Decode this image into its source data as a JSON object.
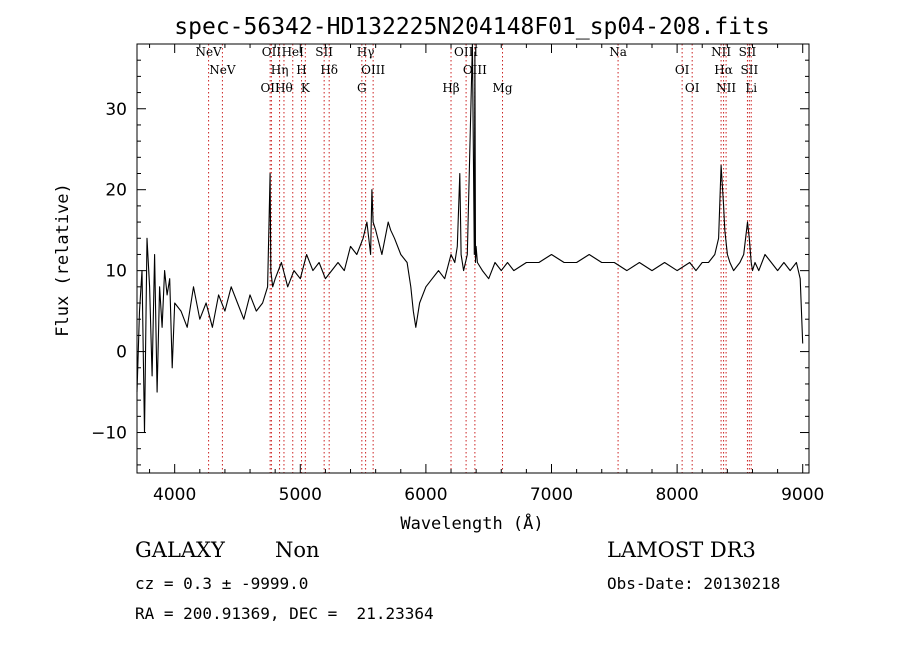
{
  "chart_data": {
    "type": "line",
    "title": "spec-56342-HD132225N204148F01_sp04-208.fits",
    "xlabel": "Wavelength (Å)",
    "ylabel": "Flux (relative)",
    "xlim": [
      3700,
      9050
    ],
    "ylim": [
      -15,
      38
    ],
    "xticks": [
      4000,
      5000,
      6000,
      7000,
      8000,
      9000
    ],
    "yticks": [
      -10,
      0,
      10,
      20,
      30
    ],
    "grid": false,
    "series": [
      {
        "color": "#000000",
        "x": [
          3700,
          3720,
          3740,
          3760,
          3780,
          3800,
          3820,
          3840,
          3860,
          3880,
          3900,
          3920,
          3940,
          3960,
          3980,
          4000,
          4050,
          4100,
          4150,
          4200,
          4250,
          4300,
          4350,
          4400,
          4450,
          4500,
          4550,
          4600,
          4650,
          4700,
          4740,
          4760,
          4765,
          4780,
          4800,
          4850,
          4900,
          4950,
          5000,
          5050,
          5100,
          5150,
          5200,
          5250,
          5300,
          5350,
          5400,
          5450,
          5500,
          5530,
          5560,
          5570,
          5580,
          5600,
          5650,
          5700,
          5720,
          5750,
          5800,
          5850,
          5880,
          5900,
          5920,
          5950,
          6000,
          6050,
          6100,
          6150,
          6200,
          6230,
          6250,
          6270,
          6280,
          6300,
          6330,
          6370,
          6385,
          6390,
          6395,
          6400,
          6410,
          6450,
          6500,
          6550,
          6600,
          6650,
          6700,
          6800,
          6900,
          7000,
          7100,
          7200,
          7300,
          7400,
          7500,
          7600,
          7700,
          7800,
          7900,
          8000,
          8100,
          8150,
          8200,
          8250,
          8300,
          8330,
          8350,
          8370,
          8380,
          8400,
          8420,
          8450,
          8500,
          8530,
          8560,
          8575,
          8590,
          8600,
          8620,
          8650,
          8700,
          8750,
          8800,
          8850,
          8900,
          8950,
          8980,
          9000
        ],
        "values": [
          -5,
          5,
          10,
          -10,
          14,
          8,
          -3,
          12,
          -5,
          8,
          3,
          10,
          7,
          9,
          -2,
          6,
          5,
          3,
          8,
          4,
          6,
          3,
          7,
          5,
          8,
          6,
          4,
          7,
          5,
          6,
          8,
          22,
          10,
          8,
          9,
          11,
          8,
          10,
          9,
          12,
          10,
          11,
          9,
          10,
          11,
          10,
          13,
          12,
          14,
          16,
          12,
          20,
          16,
          15,
          12,
          16,
          15,
          14,
          12,
          11,
          8,
          5,
          3,
          6,
          8,
          9,
          10,
          9,
          12,
          11,
          13,
          22,
          12,
          10,
          12,
          38,
          12,
          37,
          11,
          13,
          11,
          10,
          9,
          11,
          10,
          11,
          10,
          11,
          11,
          12,
          11,
          11,
          12,
          11,
          11,
          10,
          11,
          10,
          11,
          10,
          11,
          10,
          11,
          11,
          12,
          14,
          23,
          18,
          15,
          12,
          11,
          10,
          11,
          12,
          16,
          14,
          11,
          10,
          11,
          10,
          12,
          11,
          10,
          11,
          10,
          11,
          9,
          1
        ]
      }
    ],
    "line_markers": [
      {
        "x": 4270,
        "label": "NeV"
      },
      {
        "x": 4380,
        "label": "NeV"
      },
      {
        "x": 4760,
        "label": "OII"
      },
      {
        "x": 4770,
        "label": "OII"
      },
      {
        "x": 4835,
        "label": "Hη"
      },
      {
        "x": 4870,
        "label": "Hθ"
      },
      {
        "x": 4940,
        "label": "HeI"
      },
      {
        "x": 5010,
        "label": "H"
      },
      {
        "x": 5040,
        "label": "K"
      },
      {
        "x": 5190,
        "label": "SII"
      },
      {
        "x": 5230,
        "label": "Hδ"
      },
      {
        "x": 5490,
        "label": "G"
      },
      {
        "x": 5520,
        "label": "Hγ"
      },
      {
        "x": 5580,
        "label": "OIII"
      },
      {
        "x": 6200,
        "label": "Hβ"
      },
      {
        "x": 6320,
        "label": "OIII"
      },
      {
        "x": 6390,
        "label": "OIII"
      },
      {
        "x": 6610,
        "label": "Mg"
      },
      {
        "x": 7530,
        "label": "Na"
      },
      {
        "x": 8040,
        "label": "OI"
      },
      {
        "x": 8120,
        "label": "OI"
      },
      {
        "x": 8350,
        "label": "NII"
      },
      {
        "x": 8370,
        "label": "Hα"
      },
      {
        "x": 8390,
        "label": "NII"
      },
      {
        "x": 8560,
        "label": "SII"
      },
      {
        "x": 8575,
        "label": "SII"
      },
      {
        "x": 8590,
        "label": "Li"
      }
    ],
    "marker_color": "#cc2222"
  },
  "footer": {
    "class_label": "GALAXY",
    "subclass_label": "Non",
    "cz_text": "cz = 0.3 ± -9999.0",
    "radec_text": "RA = 200.91369, DEC =  21.23364",
    "survey_label": "LAMOST DR3",
    "obs_date_text": "Obs-Date: 20130218"
  }
}
